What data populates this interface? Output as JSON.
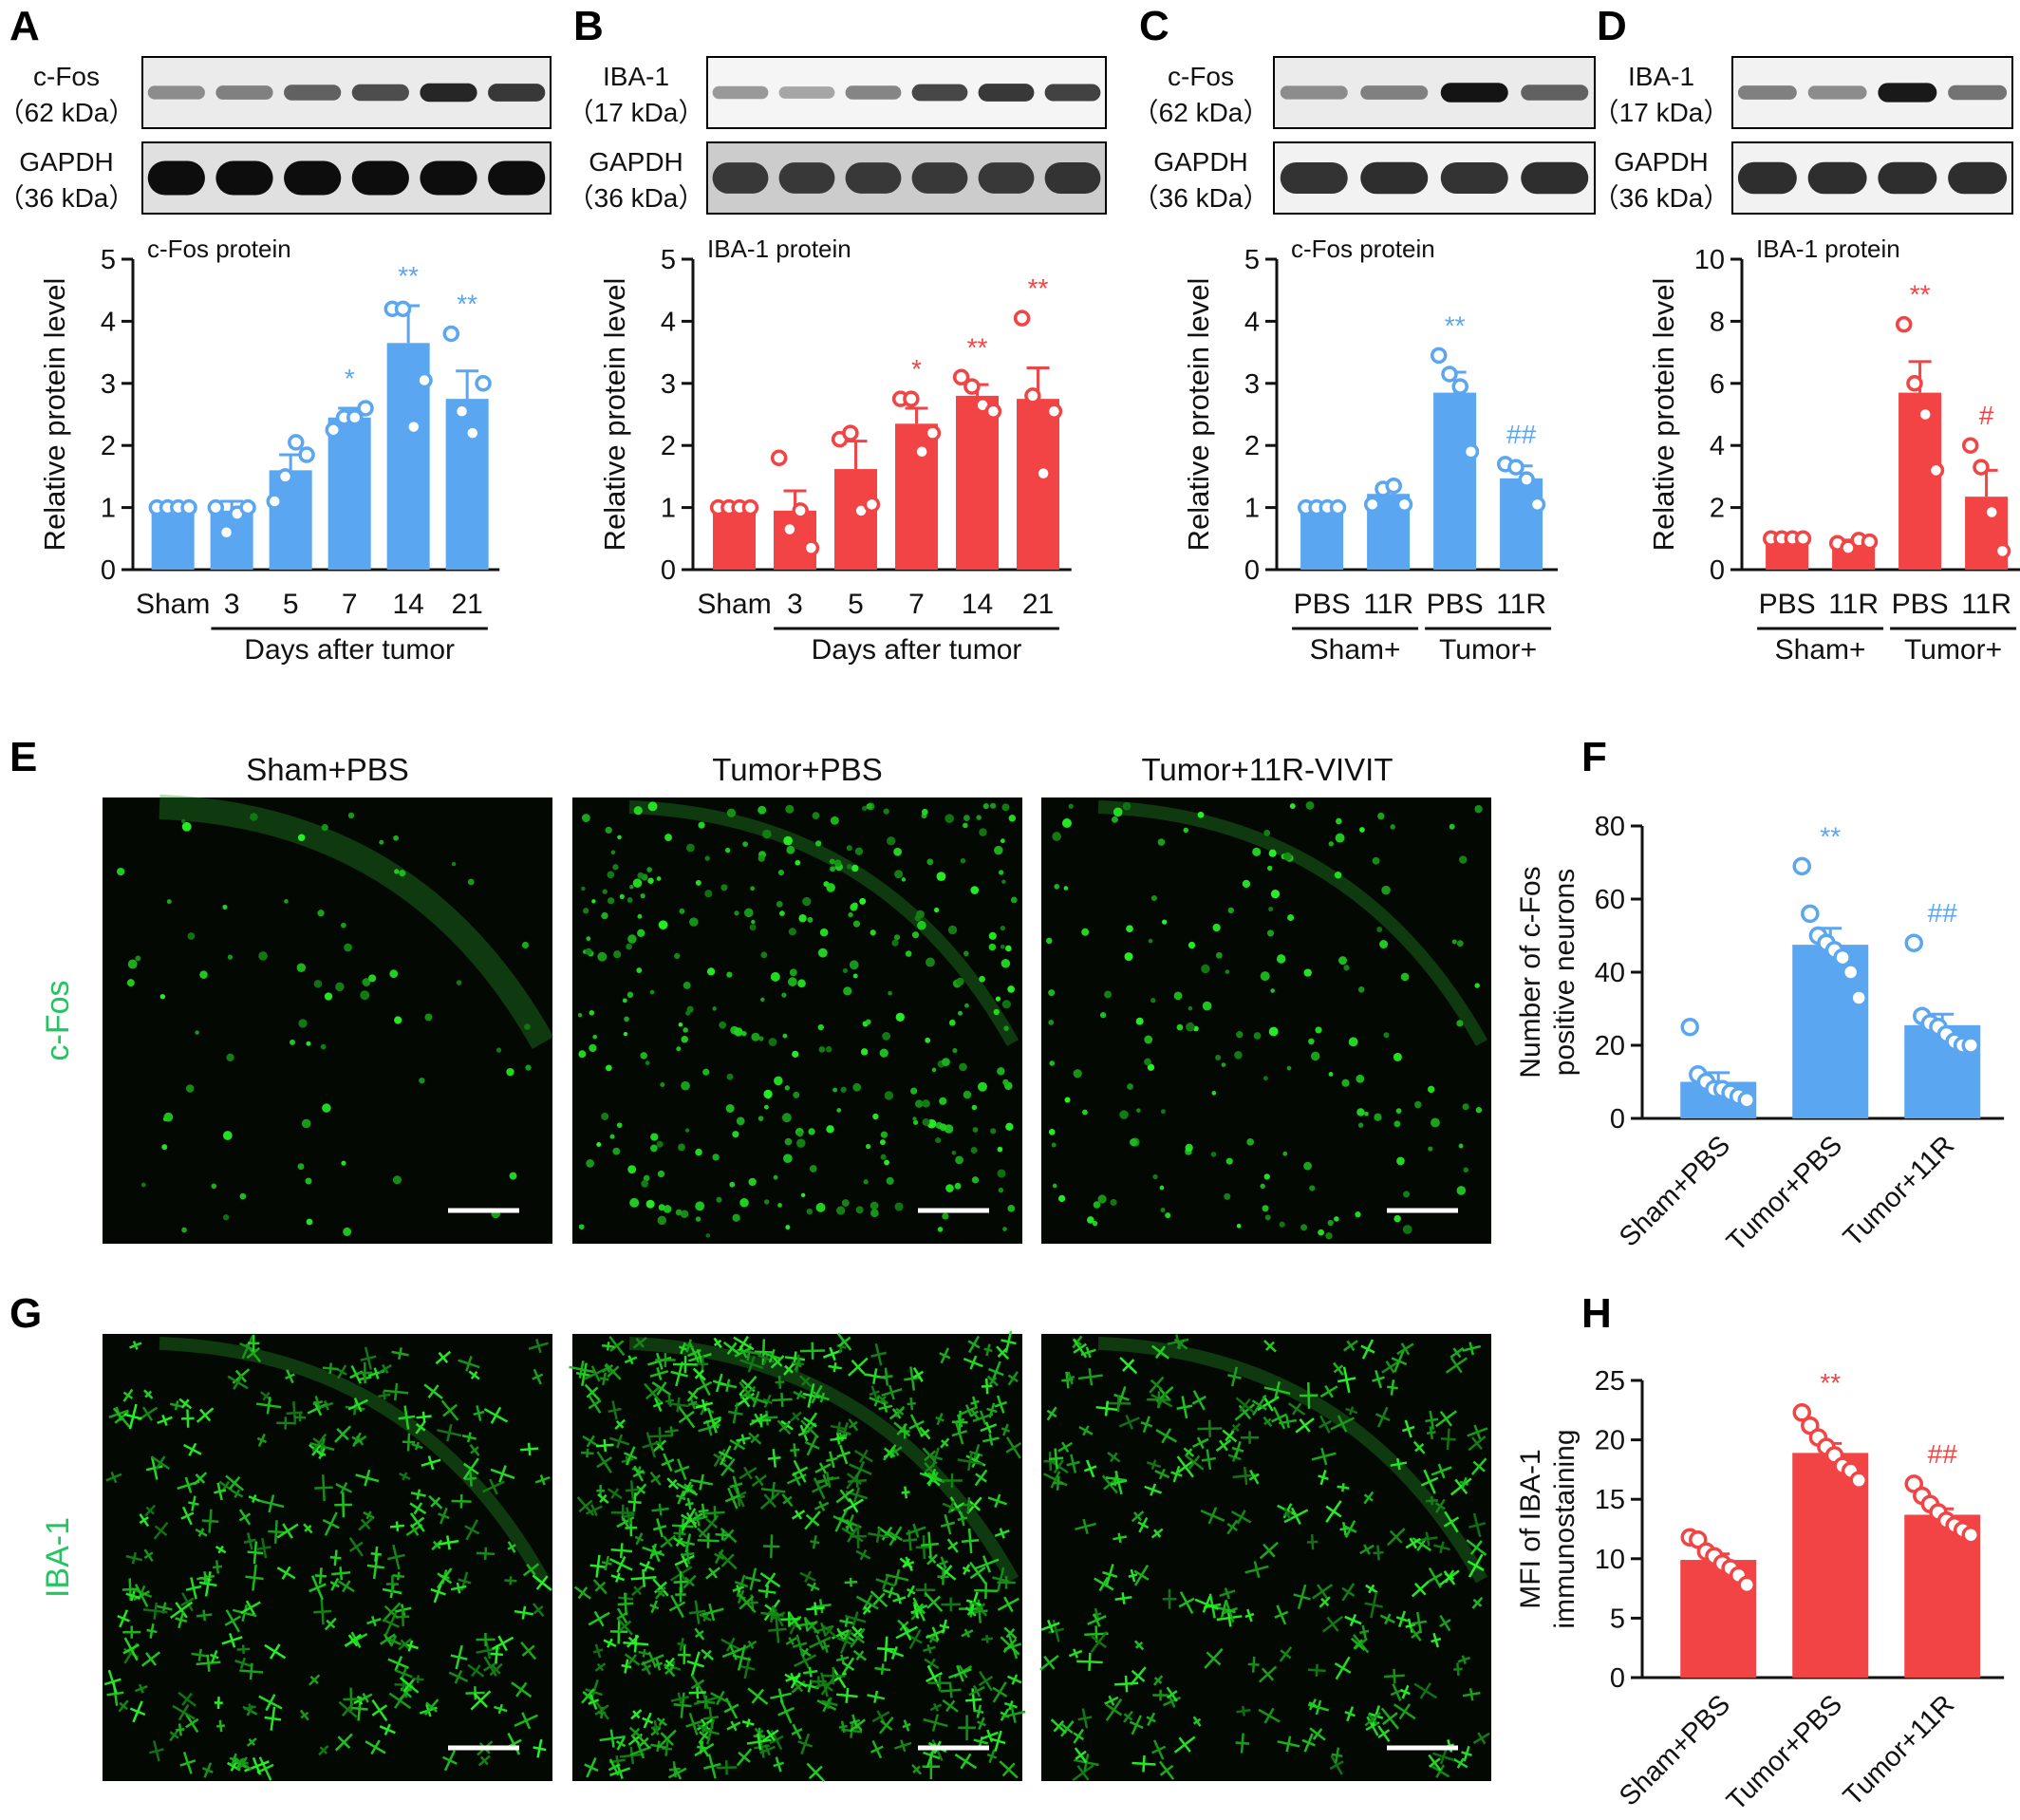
{
  "colors": {
    "blue": "#5aa6f0",
    "red": "#f24444",
    "black": "#000000",
    "green": "#22c55e",
    "micro_bg": "#030803"
  },
  "blots": [
    {
      "panel": "A",
      "rows": [
        {
          "label": "c-Fos",
          "kda": "（62 kDa）",
          "intensity": [
            0.45,
            0.5,
            0.62,
            0.7,
            0.85,
            0.78
          ],
          "bg": 0.08
        },
        {
          "label": "GAPDH",
          "kda": "（36 kDa）",
          "intensity": [
            0.95,
            0.95,
            0.95,
            0.95,
            0.95,
            0.95
          ],
          "bg": 0.12
        }
      ]
    },
    {
      "panel": "B",
      "rows": [
        {
          "label": "IBA-1",
          "kda": "（17 kDa）",
          "intensity": [
            0.4,
            0.35,
            0.48,
            0.72,
            0.78,
            0.74
          ],
          "bg": 0.04
        },
        {
          "label": "GAPDH",
          "kda": "（36 kDa）",
          "intensity": [
            0.78,
            0.78,
            0.78,
            0.78,
            0.78,
            0.8
          ],
          "bg": 0.2
        }
      ]
    },
    {
      "panel": "C",
      "rows": [
        {
          "label": "c-Fos",
          "kda": "（62 kDa）",
          "intensity": [
            0.45,
            0.5,
            0.92,
            0.62
          ],
          "bg": 0.08
        },
        {
          "label": "GAPDH",
          "kda": "（36 kDa）",
          "intensity": [
            0.8,
            0.82,
            0.8,
            0.82
          ],
          "bg": 0.05
        }
      ]
    },
    {
      "panel": "D",
      "rows": [
        {
          "label": "IBA-1",
          "kda": "（17 kDa）",
          "intensity": [
            0.5,
            0.45,
            0.9,
            0.55
          ],
          "bg": 0.05
        },
        {
          "label": "GAPDH",
          "kda": "（36 kDa）",
          "intensity": [
            0.82,
            0.82,
            0.82,
            0.82
          ],
          "bg": 0.05
        }
      ]
    }
  ],
  "chart_data": [
    {
      "panel": "A",
      "type": "bar",
      "title": "c-Fos protein",
      "ylabel": "Relative protein level",
      "ylim": [
        0,
        5
      ],
      "yticks": [
        0,
        1,
        2,
        3,
        4,
        5
      ],
      "color": "#5aa6f0",
      "categories": [
        "Sham",
        "3",
        "5",
        "7",
        "14",
        "21"
      ],
      "values": [
        1.0,
        0.95,
        1.6,
        2.45,
        3.65,
        2.75
      ],
      "sem": [
        0,
        0.15,
        0.25,
        0.15,
        0.6,
        0.45
      ],
      "points": [
        [
          1,
          1,
          1,
          1
        ],
        [
          1.0,
          0.6,
          0.9,
          1.0
        ],
        [
          1.1,
          1.5,
          2.05,
          1.85
        ],
        [
          2.25,
          2.45,
          2.45,
          2.6
        ],
        [
          4.2,
          4.2,
          2.3,
          3.05
        ],
        [
          3.8,
          2.55,
          2.2,
          3.0
        ]
      ],
      "sig": [
        "",
        "",
        "",
        "*",
        "**",
        "**"
      ],
      "sig_color": "#5aa6f0",
      "group_label": "Days after tumor",
      "group_span": [
        1,
        5
      ]
    },
    {
      "panel": "B",
      "type": "bar",
      "title": "IBA-1 protein",
      "ylabel": "Relative protein level",
      "ylim": [
        0,
        5
      ],
      "yticks": [
        0,
        1,
        2,
        3,
        4,
        5
      ],
      "color": "#f24444",
      "categories": [
        "Sham",
        "3",
        "5",
        "7",
        "14",
        "21"
      ],
      "values": [
        1.0,
        0.95,
        1.62,
        2.35,
        2.8,
        2.75
      ],
      "sem": [
        0,
        0.32,
        0.45,
        0.25,
        0.18,
        0.5
      ],
      "points": [
        [
          1,
          1,
          1,
          1
        ],
        [
          1.8,
          0.65,
          0.95,
          0.35
        ],
        [
          2.1,
          2.2,
          0.95,
          1.05
        ],
        [
          2.75,
          2.75,
          1.9,
          2.2
        ],
        [
          3.1,
          2.95,
          2.65,
          2.55
        ],
        [
          4.05,
          2.8,
          1.55,
          2.55
        ]
      ],
      "sig": [
        "",
        "",
        "",
        "*",
        "**",
        "**"
      ],
      "sig_color": "#f24444",
      "group_label": "Days after tumor",
      "group_span": [
        1,
        5
      ]
    },
    {
      "panel": "C",
      "type": "bar",
      "title": "c-Fos protein",
      "ylabel": "Relative protein level",
      "ylim": [
        0,
        5
      ],
      "yticks": [
        0,
        1,
        2,
        3,
        4,
        5
      ],
      "color": "#5aa6f0",
      "categories": [
        "PBS",
        "11R",
        "PBS",
        "11R"
      ],
      "values": [
        1.0,
        1.22,
        2.85,
        1.47
      ],
      "sem": [
        0,
        0.12,
        0.33,
        0.2
      ],
      "points": [
        [
          1,
          1,
          1,
          1
        ],
        [
          1.05,
          1.3,
          1.35,
          1.05
        ],
        [
          3.45,
          3.15,
          2.95,
          1.9
        ],
        [
          1.7,
          1.65,
          1.45,
          1.05
        ]
      ],
      "sig": [
        "",
        "",
        "**",
        "##"
      ],
      "sig_color": "#5aa6f0",
      "groups": [
        {
          "label": "Sham+",
          "span": [
            0,
            1
          ]
        },
        {
          "label": "Tumor+",
          "span": [
            2,
            3
          ]
        }
      ]
    },
    {
      "panel": "D",
      "type": "bar",
      "title": "IBA-1 protein",
      "ylabel": "Relative protein level",
      "ylim": [
        0,
        10
      ],
      "yticks": [
        0,
        2,
        4,
        6,
        8,
        10
      ],
      "color": "#f24444",
      "categories": [
        "PBS",
        "11R",
        "PBS",
        "11R"
      ],
      "values": [
        1.0,
        0.85,
        5.7,
        2.35
      ],
      "sem": [
        0,
        0.1,
        1.0,
        0.85
      ],
      "points": [
        [
          1,
          1,
          1,
          1
        ],
        [
          0.85,
          0.7,
          0.95,
          0.9
        ],
        [
          7.9,
          6.0,
          5.0,
          3.2
        ],
        [
          4.0,
          3.3,
          1.85,
          0.6
        ]
      ],
      "sig": [
        "",
        "",
        "**",
        "#"
      ],
      "sig_color": "#f24444",
      "groups": [
        {
          "label": "Sham+",
          "span": [
            0,
            1
          ]
        },
        {
          "label": "Tumor+",
          "span": [
            2,
            3
          ]
        }
      ]
    },
    {
      "panel": "F",
      "type": "bar",
      "title": "",
      "ylabel": [
        "Number of c-Fos",
        "positive neurons"
      ],
      "ylim": [
        0,
        80
      ],
      "yticks": [
        0,
        20,
        40,
        60,
        80
      ],
      "color": "#5aa6f0",
      "categories": [
        "Sham+PBS",
        "Tumor+PBS",
        "Tumor+11R"
      ],
      "values": [
        10.0,
        47.5,
        25.5
      ],
      "sem": [
        2.5,
        4.5,
        3.0
      ],
      "points": [
        [
          25,
          12,
          10,
          8,
          8,
          7,
          6,
          5
        ],
        [
          69,
          56,
          50,
          48,
          46,
          44,
          40,
          33
        ],
        [
          48,
          28,
          26,
          25,
          23,
          21,
          20,
          20
        ]
      ],
      "sig": [
        "",
        "**",
        "##"
      ],
      "sig_color": "#5aa6f0"
    },
    {
      "panel": "H",
      "type": "bar",
      "title": "",
      "ylabel": [
        "MFI of IBA-1",
        "immunostaining"
      ],
      "ylim": [
        0,
        25
      ],
      "yticks": [
        0,
        5,
        10,
        15,
        20,
        25
      ],
      "color": "#f24444",
      "categories": [
        "Sham+PBS",
        "Tumor+PBS",
        "Tumor+11R"
      ],
      "values": [
        9.9,
        18.9,
        13.7
      ],
      "sem": [
        0.5,
        0.8,
        0.5
      ],
      "points": [
        [
          11.8,
          11.6,
          10.6,
          10.2,
          9.6,
          9.2,
          8.6,
          7.8
        ],
        [
          22.3,
          21.2,
          20.2,
          19.4,
          18.7,
          17.8,
          17.4,
          16.6
        ],
        [
          16.3,
          15.3,
          14.6,
          13.9,
          13.2,
          12.8,
          12.4,
          12.0
        ]
      ],
      "sig": [
        "",
        "**",
        "##"
      ],
      "sig_color": "#f24444"
    }
  ],
  "micrographs": {
    "titles": [
      "Sham+PBS",
      "Tumor+PBS",
      "Tumor+11R-VIVIT"
    ],
    "row_labels": [
      "c-Fos",
      "IBA-1"
    ],
    "panel_labels": [
      "E",
      "G"
    ],
    "cell_counts": [
      [
        70,
        320,
        160
      ],
      [
        260,
        520,
        240
      ]
    ]
  }
}
